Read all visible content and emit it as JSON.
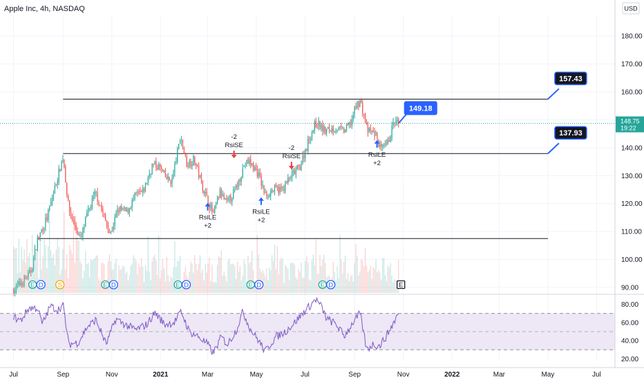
{
  "header": {
    "title": "Apple Inc, 4h, NASDAQ",
    "currency": "USD"
  },
  "chart_data": {
    "type": "candlestick",
    "price_axis": {
      "ticks": [
        "180.00",
        "170.00",
        "160.00",
        "150.00",
        "140.00",
        "130.00",
        "120.00",
        "110.00",
        "100.00",
        "90.00"
      ],
      "range": [
        88,
        186
      ]
    },
    "rsi_axis": {
      "ticks": [
        "80.00",
        "60.00",
        "40.00",
        "20.00"
      ],
      "range": [
        18,
        88
      ],
      "bands": [
        70,
        50,
        30
      ]
    },
    "time_axis": {
      "labels": [
        "Jul",
        "Sep",
        "Nov",
        "2021",
        "Mar",
        "May",
        "Jul",
        "Sep",
        "Nov",
        "2022",
        "Mar",
        "May",
        "Jul"
      ]
    },
    "price_path": [
      [
        "2020-07-01",
        89
      ],
      [
        "2020-07-12",
        92
      ],
      [
        "2020-07-22",
        95
      ],
      [
        "2020-07-31",
        107
      ],
      [
        "2020-08-12",
        115
      ],
      [
        "2020-08-22",
        126
      ],
      [
        "2020-09-01",
        137
      ],
      [
        "2020-09-08",
        118
      ],
      [
        "2020-09-16",
        112
      ],
      [
        "2020-09-23",
        107
      ],
      [
        "2020-10-01",
        116
      ],
      [
        "2020-10-12",
        124
      ],
      [
        "2020-10-20",
        117
      ],
      [
        "2020-10-30",
        109
      ],
      [
        "2020-11-09",
        118
      ],
      [
        "2020-11-20",
        117
      ],
      [
        "2020-12-01",
        123
      ],
      [
        "2020-12-10",
        124
      ],
      [
        "2020-12-22",
        134
      ],
      [
        "2020-12-31",
        133
      ],
      [
        "2021-01-08",
        129
      ],
      [
        "2021-01-15",
        128
      ],
      [
        "2021-01-26",
        144
      ],
      [
        "2021-02-03",
        134
      ],
      [
        "2021-02-12",
        136
      ],
      [
        "2021-02-24",
        125
      ],
      [
        "2021-03-08",
        116
      ],
      [
        "2021-03-16",
        124
      ],
      [
        "2021-03-25",
        120
      ],
      [
        "2021-04-05",
        125
      ],
      [
        "2021-04-16",
        134
      ],
      [
        "2021-04-22",
        135
      ],
      [
        "2021-05-03",
        131
      ],
      [
        "2021-05-12",
        123
      ],
      [
        "2021-05-21",
        125
      ],
      [
        "2021-06-02",
        125
      ],
      [
        "2021-06-14",
        130
      ],
      [
        "2021-06-24",
        133
      ],
      [
        "2021-07-07",
        144
      ],
      [
        "2021-07-15",
        149
      ],
      [
        "2021-07-26",
        146
      ],
      [
        "2021-08-06",
        147
      ],
      [
        "2021-08-19",
        146
      ],
      [
        "2021-08-27",
        149
      ],
      [
        "2021-09-03",
        155
      ],
      [
        "2021-09-08",
        157
      ],
      [
        "2021-09-17",
        146
      ],
      [
        "2021-09-27",
        145
      ],
      [
        "2021-10-04",
        139
      ],
      [
        "2021-10-12",
        141
      ],
      [
        "2021-10-20",
        149
      ],
      [
        "2021-10-26",
        148.75
      ]
    ],
    "rsi_path": [
      [
        "2020-07-01",
        66
      ],
      [
        "2020-07-10",
        62
      ],
      [
        "2020-07-20",
        76
      ],
      [
        "2020-07-31",
        76
      ],
      [
        "2020-08-06",
        58
      ],
      [
        "2020-08-16",
        78
      ],
      [
        "2020-08-25",
        74
      ],
      [
        "2020-09-01",
        79
      ],
      [
        "2020-09-08",
        36
      ],
      [
        "2020-09-20",
        38
      ],
      [
        "2020-10-01",
        55
      ],
      [
        "2020-10-12",
        63
      ],
      [
        "2020-10-25",
        36
      ],
      [
        "2020-11-06",
        64
      ],
      [
        "2020-11-19",
        57
      ],
      [
        "2020-12-01",
        52
      ],
      [
        "2020-12-15",
        58
      ],
      [
        "2020-12-25",
        71
      ],
      [
        "2021-01-06",
        58
      ],
      [
        "2021-01-18",
        60
      ],
      [
        "2021-01-27",
        72
      ],
      [
        "2021-02-06",
        50
      ],
      [
        "2021-02-18",
        44
      ],
      [
        "2021-03-01",
        36
      ],
      [
        "2021-03-08",
        26
      ],
      [
        "2021-03-18",
        44
      ],
      [
        "2021-03-26",
        36
      ],
      [
        "2021-04-06",
        52
      ],
      [
        "2021-04-14",
        72
      ],
      [
        "2021-04-24",
        52
      ],
      [
        "2021-05-04",
        40
      ],
      [
        "2021-05-12",
        28
      ],
      [
        "2021-05-25",
        44
      ],
      [
        "2021-06-05",
        49
      ],
      [
        "2021-06-18",
        60
      ],
      [
        "2021-07-01",
        73
      ],
      [
        "2021-07-09",
        80
      ],
      [
        "2021-07-14",
        86
      ],
      [
        "2021-07-21",
        78
      ],
      [
        "2021-07-28",
        64
      ],
      [
        "2021-08-09",
        58
      ],
      [
        "2021-08-19",
        45
      ],
      [
        "2021-08-30",
        60
      ],
      [
        "2021-09-08",
        70
      ],
      [
        "2021-09-16",
        30
      ],
      [
        "2021-09-24",
        36
      ],
      [
        "2021-10-02",
        34
      ],
      [
        "2021-10-10",
        44
      ],
      [
        "2021-10-17",
        55
      ],
      [
        "2021-10-26",
        70
      ]
    ],
    "level_lines": [
      {
        "price": 157.43,
        "from": "2020-09-01",
        "to": "2022-05-01",
        "label": "157.43"
      },
      {
        "price": 137.93,
        "from": "2020-09-01",
        "to": "2022-05-01",
        "label": "137.93"
      },
      {
        "price": 107.5,
        "from": "2020-07-31",
        "to": "2022-05-01"
      }
    ],
    "markers": [
      {
        "date": "2021-04-03",
        "price": 137.5,
        "dir": "down",
        "lines": [
          "-2",
          "RsiSE"
        ]
      },
      {
        "date": "2021-06-14",
        "price": 133.5,
        "dir": "down",
        "lines": [
          "-2",
          "RsiSE"
        ]
      },
      {
        "date": "2021-03-01",
        "price": 119,
        "dir": "up",
        "lines": [
          "RsiLE",
          "+2"
        ]
      },
      {
        "date": "2021-05-07",
        "price": 121,
        "dir": "up",
        "lines": [
          "RsiLE",
          "+2"
        ]
      },
      {
        "date": "2021-09-29",
        "price": 141.5,
        "dir": "up",
        "lines": [
          "RsiLE",
          "+2"
        ]
      }
    ],
    "event_badges": [
      {
        "date": "2020-07-30",
        "kinds": [
          "E",
          "D"
        ]
      },
      {
        "date": "2020-08-28",
        "kinds": [
          "S"
        ]
      },
      {
        "date": "2020-10-29",
        "kinds": [
          "E",
          "D"
        ]
      },
      {
        "date": "2021-01-28",
        "kinds": [
          "E",
          "D"
        ]
      },
      {
        "date": "2021-04-29",
        "kinds": [
          "E",
          "D"
        ]
      },
      {
        "date": "2021-07-28",
        "kinds": [
          "E",
          "D"
        ]
      },
      {
        "date": "2021-10-29",
        "kinds": [
          "E"
        ]
      }
    ],
    "last_price": "148.75",
    "countdown": "19:22",
    "callout": {
      "text": "149.18",
      "date": "2021-10-26",
      "price": 148.75
    },
    "colors": {
      "up": "#26a69a",
      "down": "#ef5350",
      "rsi": "#7e57c2",
      "rsi_band": "#ede7f6",
      "callout": "#2962ff",
      "level_label": "#131722",
      "last_price": "#26a69a",
      "marker_up": "#2962ff",
      "marker_down": "#f23645"
    }
  }
}
